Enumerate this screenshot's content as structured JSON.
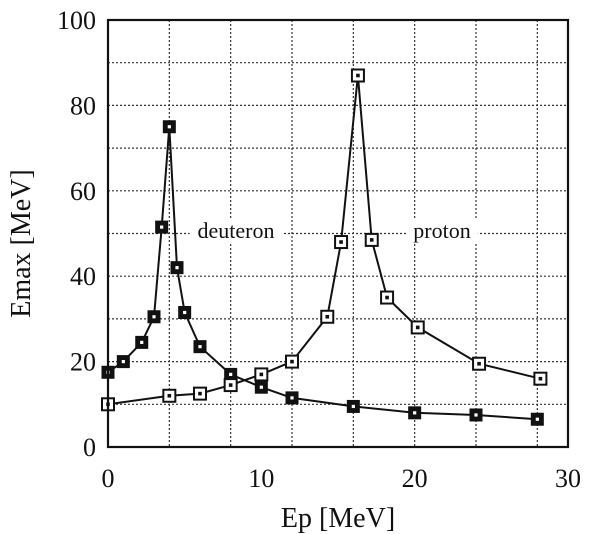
{
  "chart_data": {
    "type": "line",
    "title": "",
    "xlabel": "Ep [MeV]",
    "ylabel": "Emax [MeV]",
    "xlim": [
      0,
      30
    ],
    "ylim": [
      0,
      100
    ],
    "xticks": [
      0,
      10,
      20,
      30
    ],
    "yticks": [
      0,
      20,
      40,
      60,
      80,
      100
    ],
    "x_gridlines": [
      0,
      4,
      8,
      12,
      16,
      20,
      24,
      28
    ],
    "y_gridlines": [
      10,
      20,
      30,
      40,
      50,
      60,
      70,
      80,
      90
    ],
    "grid": true,
    "legend": "none",
    "series": [
      {
        "name": "deuteron",
        "marker": "filled-square",
        "x": [
          0,
          1,
          2.2,
          3,
          3.5,
          4,
          4.5,
          5,
          6,
          8,
          10,
          12,
          16,
          20,
          24,
          28
        ],
        "y": [
          17.5,
          20,
          24.5,
          30.5,
          51.5,
          75,
          42,
          31.5,
          23.5,
          17,
          14,
          11.5,
          9.5,
          8,
          7.5,
          6.5
        ]
      },
      {
        "name": "proton",
        "marker": "open-square",
        "x": [
          0,
          4,
          6,
          8,
          10,
          12,
          14.3,
          15.2,
          16.3,
          17.2,
          18.2,
          20.2,
          24.2,
          28.2
        ],
        "y": [
          10,
          12,
          12.5,
          14.5,
          17,
          20,
          30.5,
          48,
          87,
          48.5,
          35,
          28,
          19.5,
          16
        ]
      }
    ]
  }
}
